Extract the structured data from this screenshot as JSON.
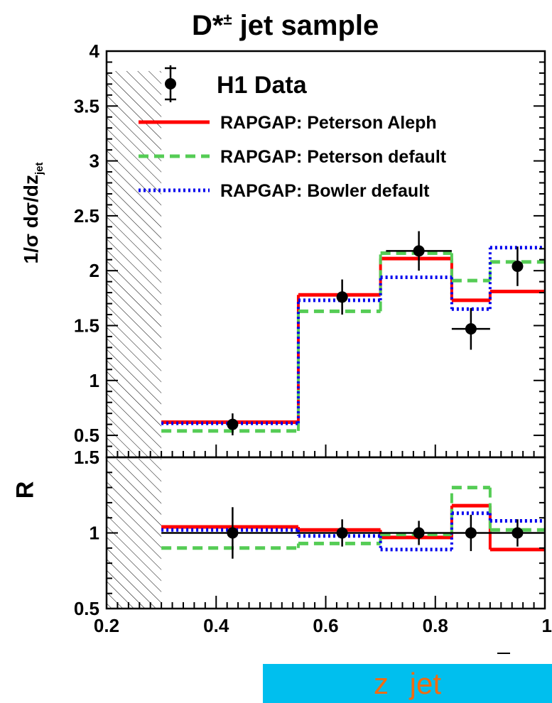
{
  "chart_data": [
    {
      "type": "line",
      "panel": "main",
      "title": "D*± jet sample",
      "title_main": "D*",
      "title_sup": "±",
      "ylabel": "1/σ dσ/dz",
      "ylabel_sub": "jet",
      "xlim": [
        0.2,
        1.0
      ],
      "ylim": [
        0.3,
        4.0
      ],
      "y_ticks": [
        "0.5",
        "1",
        "1.5",
        "2",
        "2.5",
        "3",
        "3.5",
        "4"
      ],
      "y_tick_values": [
        0.5,
        1,
        1.5,
        2,
        2.5,
        3,
        3.5,
        4
      ],
      "excluded_region": [
        0.2,
        0.3
      ],
      "bin_edges": [
        0.3,
        0.55,
        0.7,
        0.83,
        0.9,
        1.0
      ],
      "legend_position": "top-left",
      "series": [
        {
          "name": "H1 Data",
          "style": "points",
          "color": "#000000",
          "x": [
            0.43,
            0.63,
            0.77,
            0.865,
            0.95
          ],
          "y": [
            0.6,
            1.76,
            2.18,
            1.47,
            2.04
          ],
          "y_err": [
            0.1,
            0.16,
            0.18,
            0.19,
            0.18
          ],
          "x_err_low": [
            0.0,
            0.0,
            0.06,
            0.035,
            0.0
          ],
          "x_err_high": [
            0.0,
            0.0,
            0.06,
            0.035,
            0.0
          ]
        },
        {
          "name": "RAPGAP: Peterson Aleph",
          "style": "solid",
          "color": "#ff0000",
          "values": [
            0.62,
            1.78,
            2.11,
            1.73,
            1.81
          ]
        },
        {
          "name": "RAPGAP: Peterson default",
          "style": "dashed",
          "color": "#55cc55",
          "values": [
            0.54,
            1.63,
            2.16,
            1.91,
            2.08
          ]
        },
        {
          "name": "RAPGAP: Bowler default",
          "style": "dotted",
          "color": "#0000ee",
          "values": [
            0.61,
            1.73,
            1.94,
            1.65,
            2.21
          ]
        }
      ]
    },
    {
      "type": "line",
      "panel": "ratio",
      "ylabel": "R",
      "xlabel": "z  jet",
      "xlim": [
        0.2,
        1.0
      ],
      "ylim": [
        0.5,
        1.5
      ],
      "x_ticks": [
        "0.2",
        "0.4",
        "0.6",
        "0.8",
        "1"
      ],
      "x_tick_values": [
        0.2,
        0.4,
        0.6,
        0.8,
        1.0
      ],
      "y_ticks": [
        "0.5",
        "1",
        "1.5"
      ],
      "y_tick_values": [
        0.5,
        1.0,
        1.5
      ],
      "excluded_region": [
        0.2,
        0.3
      ],
      "bin_edges": [
        0.3,
        0.55,
        0.7,
        0.83,
        0.9,
        1.0
      ],
      "series": [
        {
          "name": "H1 Data",
          "style": "points",
          "color": "#000000",
          "x": [
            0.43,
            0.63,
            0.77,
            0.865,
            0.95
          ],
          "y": [
            1.0,
            1.0,
            1.0,
            1.0,
            1.0
          ],
          "y_err": [
            0.17,
            0.09,
            0.08,
            0.12,
            0.09
          ]
        },
        {
          "name": "RAPGAP: Peterson Aleph",
          "style": "solid",
          "color": "#ff0000",
          "values": [
            1.04,
            1.02,
            0.97,
            1.18,
            0.89
          ]
        },
        {
          "name": "RAPGAP: Peterson default",
          "style": "dashed",
          "color": "#55cc55",
          "values": [
            0.9,
            0.93,
            0.99,
            1.3,
            1.02
          ]
        },
        {
          "name": "RAPGAP: Bowler default",
          "style": "dotted",
          "color": "#0000ee",
          "values": [
            1.02,
            0.98,
            0.89,
            1.13,
            1.08
          ]
        }
      ]
    }
  ]
}
